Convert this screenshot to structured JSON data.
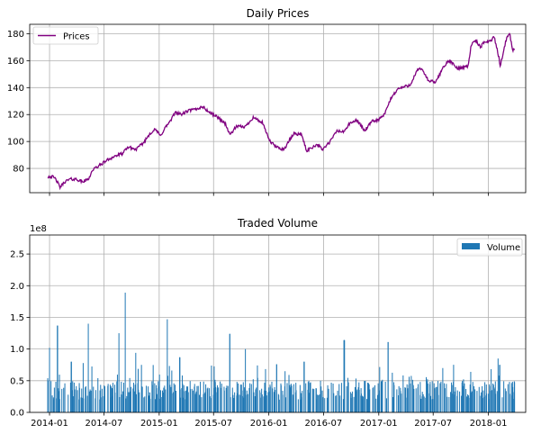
{
  "chart_data": [
    {
      "type": "line",
      "title": "Daily Prices",
      "xlabel": "",
      "ylabel": "",
      "legend": {
        "position": "top-left",
        "entries": [
          "Prices"
        ]
      },
      "grid": true,
      "ylim": [
        62,
        187
      ],
      "xlim": [
        "2013-10-27",
        "2018-05-05"
      ],
      "yticks": [
        80,
        100,
        120,
        140,
        160,
        180
      ],
      "series": [
        {
          "name": "Prices",
          "color": "#800080",
          "points": [
            [
              "2013-12-26",
              74
            ],
            [
              "2014-01-10",
              74
            ],
            [
              "2014-01-22",
              72
            ],
            [
              "2014-02-05",
              66
            ],
            [
              "2014-02-20",
              70
            ],
            [
              "2014-03-10",
              72
            ],
            [
              "2014-04-01",
              72
            ],
            [
              "2014-04-20",
              70
            ],
            [
              "2014-05-10",
              72
            ],
            [
              "2014-05-25",
              79
            ],
            [
              "2014-06-15",
              82
            ],
            [
              "2014-07-10",
              86
            ],
            [
              "2014-08-05",
              89
            ],
            [
              "2014-09-01",
              91
            ],
            [
              "2014-09-20",
              96
            ],
            [
              "2014-10-15",
              94
            ],
            [
              "2014-11-10",
              99
            ],
            [
              "2014-12-01",
              106
            ],
            [
              "2014-12-20",
              109
            ],
            [
              "2015-01-05",
              104
            ],
            [
              "2015-01-20",
              110
            ],
            [
              "2015-02-10",
              116
            ],
            [
              "2015-02-24",
              122
            ],
            [
              "2015-03-15",
              120
            ],
            [
              "2015-04-10",
              123
            ],
            [
              "2015-05-05",
              124
            ],
            [
              "2015-05-25",
              126
            ],
            [
              "2015-06-15",
              122
            ],
            [
              "2015-07-15",
              118
            ],
            [
              "2015-08-10",
              113
            ],
            [
              "2015-08-24",
              105
            ],
            [
              "2015-09-15",
              111
            ],
            [
              "2015-10-15",
              111
            ],
            [
              "2015-11-10",
              118
            ],
            [
              "2015-12-10",
              114
            ],
            [
              "2016-01-05",
              100
            ],
            [
              "2016-01-25",
              96
            ],
            [
              "2016-02-20",
              94
            ],
            [
              "2016-03-10",
              101
            ],
            [
              "2016-03-25",
              106
            ],
            [
              "2016-04-20",
              105
            ],
            [
              "2016-05-05",
              93
            ],
            [
              "2016-06-10",
              98
            ],
            [
              "2016-06-27",
              94
            ],
            [
              "2016-07-20",
              99
            ],
            [
              "2016-08-15",
              108
            ],
            [
              "2016-09-05",
              107
            ],
            [
              "2016-09-25",
              113
            ],
            [
              "2016-10-20",
              116
            ],
            [
              "2016-11-15",
              108
            ],
            [
              "2016-12-10",
              115
            ],
            [
              "2016-12-30",
              116
            ],
            [
              "2017-01-20",
              120
            ],
            [
              "2017-02-10",
              132
            ],
            [
              "2017-03-05",
              139
            ],
            [
              "2017-04-15",
              142
            ],
            [
              "2017-05-10",
              153
            ],
            [
              "2017-05-25",
              154
            ],
            [
              "2017-06-15",
              145
            ],
            [
              "2017-07-10",
              144
            ],
            [
              "2017-08-05",
              156
            ],
            [
              "2017-08-25",
              160
            ],
            [
              "2017-09-20",
              154
            ],
            [
              "2017-10-05",
              155
            ],
            [
              "2017-10-25",
              156
            ],
            [
              "2017-11-05",
              172
            ],
            [
              "2017-11-20",
              175
            ],
            [
              "2017-12-05",
              170
            ],
            [
              "2017-12-20",
              174
            ],
            [
              "2018-01-10",
              175
            ],
            [
              "2018-01-20",
              178
            ],
            [
              "2018-02-05",
              162
            ],
            [
              "2018-02-09",
              156
            ],
            [
              "2018-02-25",
              172
            ],
            [
              "2018-03-05",
              178
            ],
            [
              "2018-03-12",
              181
            ],
            [
              "2018-03-22",
              168
            ],
            [
              "2018-03-29",
              168
            ]
          ]
        }
      ]
    },
    {
      "type": "bar",
      "title": "Traded Volume",
      "xlabel": "",
      "ylabel": "",
      "offset_text": "1e8",
      "legend": {
        "position": "top-right",
        "entries": [
          "Volume"
        ]
      },
      "grid": true,
      "ylim": [
        0,
        2.8
      ],
      "xlim": [
        "2013-10-27",
        "2018-05-05"
      ],
      "yticks": [
        "0.0",
        "0.5",
        "1.0",
        "1.5",
        "2.0",
        "2.5"
      ],
      "xticks": [
        "2014-01",
        "2014-07",
        "2015-01",
        "2015-07",
        "2016-01",
        "2016-07",
        "2017-01",
        "2017-07",
        "2018-01"
      ],
      "series": [
        {
          "name": "Volume",
          "color": "#1f77b4",
          "units": "1e8 shares",
          "dates_range": [
            "2013-12-26",
            "2018-03-29"
          ],
          "notable_values": [
            [
              "2014-01-01",
              1.02
            ],
            [
              "2014-01-28",
              1.37
            ],
            [
              "2014-03-15",
              0.8
            ],
            [
              "2014-05-10",
              1.4
            ],
            [
              "2014-08-20",
              1.25
            ],
            [
              "2014-09-10",
              1.89
            ],
            [
              "2014-10-15",
              0.94
            ],
            [
              "2015-01-28",
              1.47
            ],
            [
              "2015-03-10",
              0.87
            ],
            [
              "2015-08-24",
              1.24
            ],
            [
              "2015-10-15",
              1.0
            ],
            [
              "2016-01-27",
              0.76
            ],
            [
              "2016-04-27",
              0.8
            ],
            [
              "2016-09-08",
              1.14
            ],
            [
              "2017-02-01",
              1.11
            ],
            [
              "2017-08-02",
              0.7
            ],
            [
              "2017-11-03",
              0.64
            ],
            [
              "2018-02-02",
              0.85
            ],
            [
              "2018-02-08",
              0.75
            ],
            [
              "2018-03-23",
              0.4
            ]
          ],
          "typical_range": [
            0.2,
            0.5
          ]
        }
      ]
    }
  ]
}
